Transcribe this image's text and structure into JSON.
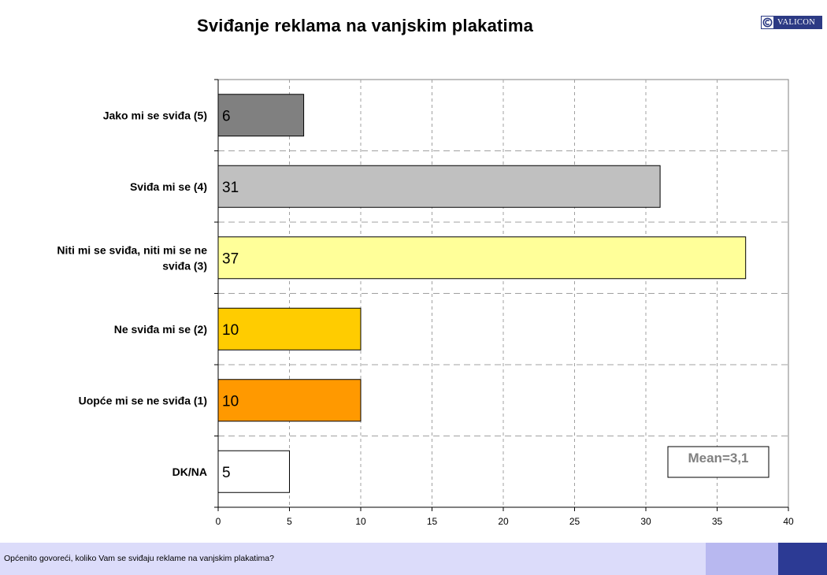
{
  "header": {
    "title": "Sviđanje reklama na vanjskim plakatima",
    "logo_text": "VALICON",
    "logo_icon": "valicon-c-icon"
  },
  "footer": {
    "question": "Općenito govoreći, koliko Vam se sviđaju reklame na vanjskim plakatima?",
    "colors": [
      "#dcdcfa",
      "#b8b8f0",
      "#2c3a94"
    ]
  },
  "chart_data": {
    "type": "bar",
    "orientation": "horizontal",
    "title": "Sviđanje reklama na vanjskim plakatima",
    "categories": [
      [
        "Jako mi se sviđa (5)"
      ],
      [
        "Sviđa mi se (4)"
      ],
      [
        "Niti mi se sviđa, niti mi se ne",
        "sviđa (3)"
      ],
      [
        "Ne sviđa mi se (2)"
      ],
      [
        "Uopće mi se ne sviđa (1)"
      ],
      [
        "DK/NA"
      ]
    ],
    "values": [
      6,
      31,
      37,
      10,
      10,
      5
    ],
    "value_labels": [
      "6",
      "31",
      "37",
      "10",
      "10",
      "5"
    ],
    "colors": [
      "#808080",
      "#c0c0c0",
      "#ffff99",
      "#ffcc00",
      "#ff9900",
      "#ffffff"
    ],
    "xlim": [
      0,
      40
    ],
    "xticks": [
      "0",
      "5",
      "10",
      "15",
      "20",
      "25",
      "30",
      "35",
      "40"
    ],
    "xlabel": "",
    "ylabel": "",
    "grid": "dashed vertical and horizontal",
    "annotation": "Mean=3,1"
  }
}
